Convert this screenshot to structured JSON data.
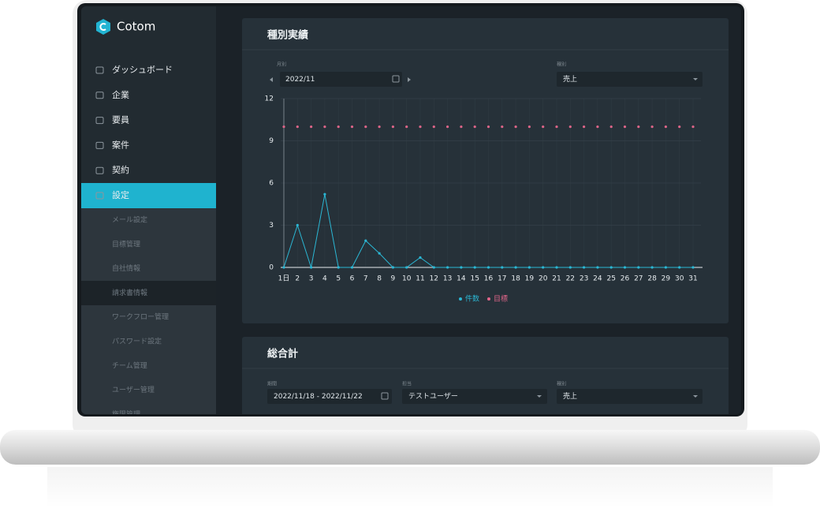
{
  "app": {
    "logo": "Cotom"
  },
  "sidebar": {
    "items": [
      "ダッシュボード",
      "企業",
      "要員",
      "案件",
      "契約",
      "設定"
    ],
    "submenu": [
      "メール設定",
      "目標管理",
      "自社情報",
      "請求書情報",
      "ワークフロー管理",
      "パスワード設定",
      "チーム管理",
      "ユーザー管理",
      "権限管理"
    ]
  },
  "panel1": {
    "title": "種別実績",
    "month_label": "月別",
    "month_value": "2022/11",
    "kind_label": "種別",
    "kind_value": "売上",
    "chart": {
      "type": "line",
      "categories": [
        "1日",
        "2",
        "3",
        "4",
        "5",
        "6",
        "7",
        "8",
        "9",
        "10",
        "11",
        "12",
        "13",
        "14",
        "15",
        "16",
        "17",
        "18",
        "19",
        "20",
        "21",
        "22",
        "23",
        "24",
        "25",
        "26",
        "27",
        "28",
        "29",
        "30",
        "31"
      ],
      "series": [
        {
          "name": "件数",
          "color": "#2bb7d4",
          "line": true,
          "values": [
            0,
            3,
            0,
            5.2,
            0,
            0,
            1.9,
            1,
            0,
            0,
            0.7,
            0,
            0,
            0,
            0,
            0,
            0,
            0,
            0,
            0,
            0,
            0,
            0,
            0,
            0,
            0,
            0,
            0,
            0,
            0,
            0
          ]
        },
        {
          "name": "目標",
          "color": "#e2668a",
          "line": false,
          "values": [
            10,
            10,
            10,
            10,
            10,
            10,
            10,
            10,
            10,
            10,
            10,
            10,
            10,
            10,
            10,
            10,
            10,
            10,
            10,
            10,
            10,
            10,
            10,
            10,
            10,
            10,
            10,
            10,
            10,
            10,
            10
          ]
        }
      ],
      "ylim": [
        0,
        12
      ],
      "yticks": [
        0,
        3,
        6,
        9,
        12
      ],
      "grid": true
    }
  },
  "panel2": {
    "title": "総合計",
    "period_label": "期間",
    "period_value": "2022/11/18 - 2022/11/22",
    "owner_label": "担当",
    "owner_value": "テストユーザー",
    "kind_label": "種別",
    "kind_value": "売上"
  }
}
